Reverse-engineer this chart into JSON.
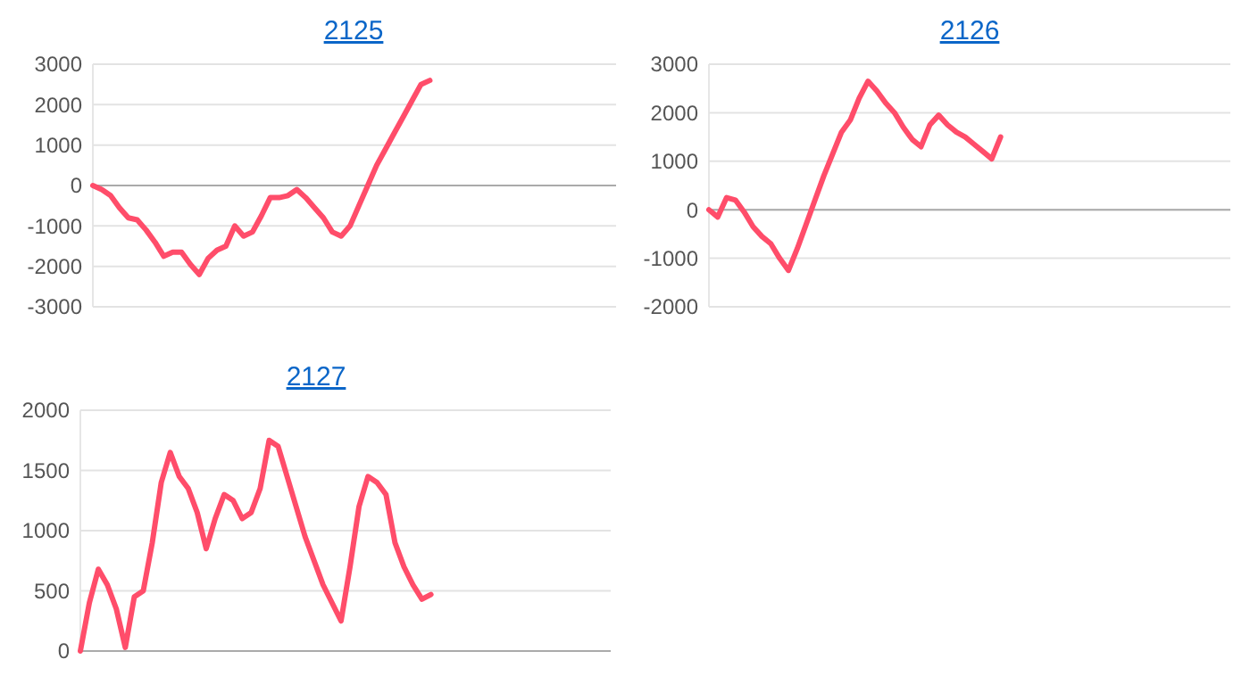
{
  "chart_data": [
    {
      "type": "line",
      "title": "2125",
      "categories": [
        null,
        null,
        null,
        null,
        null,
        null,
        null,
        null,
        null,
        null,
        null,
        null,
        null,
        null,
        null,
        null,
        null,
        null,
        null,
        null,
        null,
        null,
        null,
        null,
        null,
        null,
        null,
        null,
        null,
        null,
        null,
        null,
        null,
        null,
        null,
        null,
        null,
        null,
        null,
        null,
        null,
        null,
        null,
        null,
        null,
        null,
        null,
        null,
        null,
        null,
        null,
        null,
        null,
        null,
        null,
        null,
        null,
        null,
        null,
        null
      ],
      "series": [
        {
          "color": "#ff4d6a",
          "values": [
            0,
            -100,
            -250,
            -550,
            -800,
            -850,
            -1100,
            -1400,
            -1750,
            -1650,
            -1650,
            -1950,
            -2200,
            -1800,
            -1600,
            -1500,
            -1000,
            -1250,
            -1150,
            -750,
            -300,
            -300,
            -250,
            -100,
            -300,
            -550,
            -800,
            -1150,
            -1250,
            -1000,
            -500,
            0,
            500,
            900,
            1300,
            1700,
            2100,
            2500,
            2600,
            null,
            null,
            null,
            null,
            null,
            null,
            null,
            null,
            null,
            null,
            null,
            null,
            null,
            null,
            null,
            null,
            null,
            null,
            null,
            null,
            null
          ]
        }
      ],
      "ylim": [
        -3000,
        3000
      ],
      "yticks": [
        -3000,
        -2000,
        -1000,
        0,
        1000,
        2000,
        3000
      ],
      "grid": "y",
      "tick_labels": "y",
      "marker": "none",
      "line_style": "solid"
    },
    {
      "type": "line",
      "title": "2126",
      "categories": [
        null,
        null,
        null,
        null,
        null,
        null,
        null,
        null,
        null,
        null,
        null,
        null,
        null,
        null,
        null,
        null,
        null,
        null,
        null,
        null,
        null,
        null,
        null,
        null,
        null,
        null,
        null,
        null,
        null,
        null,
        null,
        null,
        null,
        null,
        null,
        null,
        null,
        null,
        null,
        null,
        null,
        null,
        null,
        null,
        null,
        null,
        null,
        null,
        null,
        null,
        null,
        null,
        null,
        null,
        null,
        null,
        null,
        null,
        null,
        null
      ],
      "series": [
        {
          "color": "#ff4d6a",
          "values": [
            0,
            -150,
            250,
            200,
            -50,
            -350,
            -550,
            -700,
            -1000,
            -1250,
            -800,
            -300,
            200,
            700,
            1150,
            1600,
            1850,
            2300,
            2650,
            2450,
            2200,
            2000,
            1700,
            1450,
            1300,
            1750,
            1950,
            1750,
            1600,
            1500,
            1350,
            1200,
            1050,
            1500,
            null,
            null,
            null,
            null,
            null,
            null,
            null,
            null,
            null,
            null,
            null,
            null,
            null,
            null,
            null,
            null,
            null,
            null,
            null,
            null,
            null,
            null,
            null,
            null,
            null,
            null
          ]
        }
      ],
      "ylim": [
        -2000,
        3000
      ],
      "yticks": [
        -2000,
        -1000,
        0,
        1000,
        2000,
        3000
      ],
      "grid": "y",
      "tick_labels": "y",
      "marker": "none",
      "line_style": "solid"
    },
    {
      "type": "line",
      "title": "2127",
      "categories": [
        null,
        null,
        null,
        null,
        null,
        null,
        null,
        null,
        null,
        null,
        null,
        null,
        null,
        null,
        null,
        null,
        null,
        null,
        null,
        null,
        null,
        null,
        null,
        null,
        null,
        null,
        null,
        null,
        null,
        null,
        null,
        null,
        null,
        null,
        null,
        null,
        null,
        null,
        null,
        null,
        null,
        null,
        null,
        null,
        null,
        null,
        null,
        null,
        null,
        null,
        null,
        null,
        null,
        null,
        null,
        null,
        null,
        null,
        null,
        null
      ],
      "series": [
        {
          "color": "#ff4d6a",
          "values": [
            0,
            400,
            680,
            550,
            350,
            30,
            450,
            500,
            900,
            1400,
            1650,
            1450,
            1350,
            1150,
            850,
            1100,
            1300,
            1250,
            1100,
            1150,
            1350,
            1750,
            1700,
            1450,
            1200,
            950,
            750,
            550,
            400,
            250,
            700,
            1200,
            1450,
            1400,
            1300,
            900,
            700,
            550,
            430,
            470,
            null,
            null,
            null,
            null,
            null,
            null,
            null,
            null,
            null,
            null,
            null,
            null,
            null,
            null,
            null,
            null,
            null,
            null,
            null,
            null
          ]
        }
      ],
      "ylim": [
        0,
        2000
      ],
      "yticks": [
        0,
        500,
        1000,
        1500,
        2000
      ],
      "grid": "y",
      "tick_labels": "y",
      "marker": "none",
      "line_style": "solid"
    }
  ]
}
